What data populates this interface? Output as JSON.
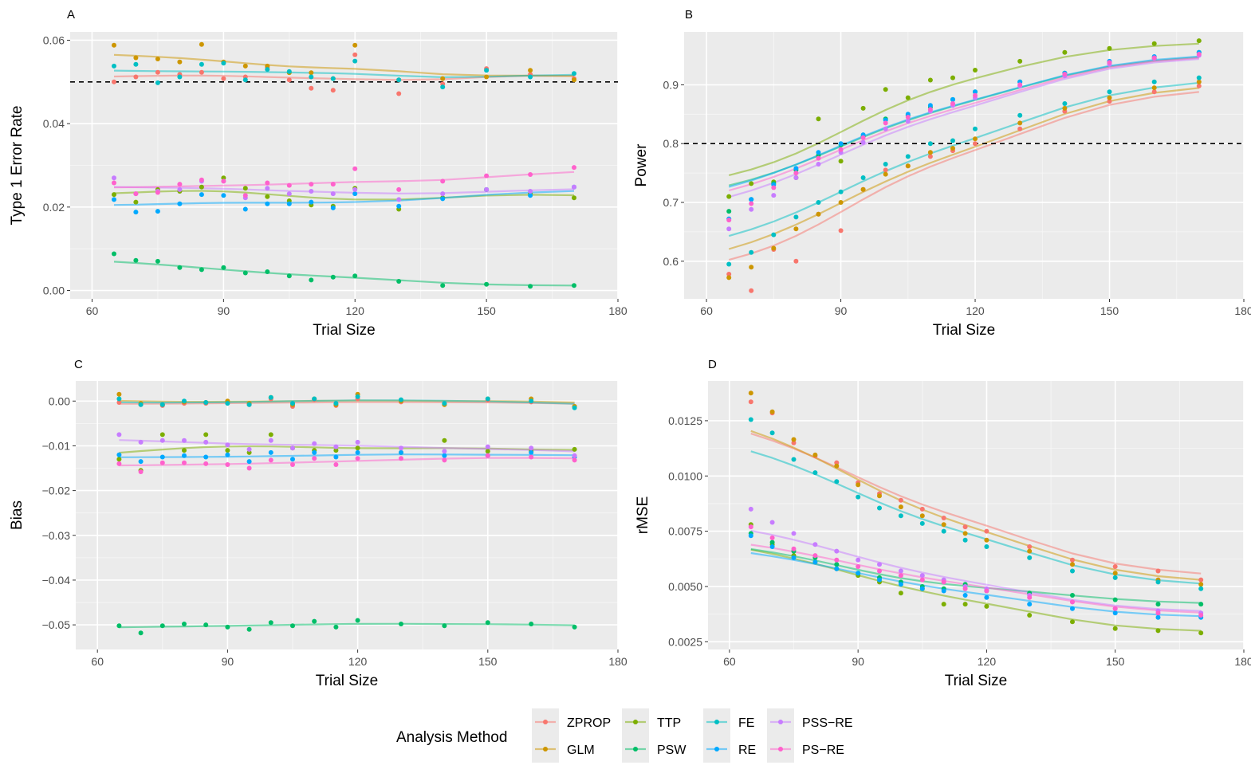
{
  "figure": {
    "legend_title": "Analysis Method",
    "methods": [
      "ZPROP",
      "GLM",
      "TTP",
      "PSW",
      "FE",
      "RE",
      "PSS−RE",
      "PS−RE"
    ],
    "colors": {
      "ZPROP": "#F8766D",
      "GLM": "#CD9600",
      "TTP": "#7CAE00",
      "PSW": "#00BE67",
      "FE": "#00BFC4",
      "RE": "#00A9FF",
      "PSS−RE": "#C77CFF",
      "PS−RE": "#FF61CC"
    }
  },
  "chart_data": [
    {
      "panel": "A",
      "type": "scatter",
      "smoothed_lines": true,
      "xlabel": "Trial Size",
      "ylabel": "Type 1 Error Rate",
      "xlim": [
        55,
        180
      ],
      "ylim": [
        -0.002,
        0.062
      ],
      "xticks": [
        60,
        90,
        120,
        150,
        180
      ],
      "yticks": [
        0.0,
        0.02,
        0.04,
        0.06
      ],
      "ytick_labels": [
        "0.00",
        "0.02",
        "0.04",
        "0.06"
      ],
      "reference_line": 0.05,
      "x": [
        65,
        70,
        75,
        80,
        85,
        90,
        95,
        100,
        105,
        110,
        115,
        120,
        130,
        140,
        150,
        160,
        170
      ],
      "series": [
        {
          "name": "ZPROP",
          "values": [
            0.05,
            0.0512,
            0.0523,
            0.0518,
            0.0523,
            0.0508,
            0.0512,
            0.0535,
            0.0505,
            0.0485,
            0.048,
            0.0565,
            0.0472,
            0.0495,
            0.0532,
            0.0518,
            0.0508
          ]
        },
        {
          "name": "GLM",
          "values": [
            0.0588,
            0.0558,
            0.0555,
            0.0548,
            0.059,
            0.0548,
            0.0538,
            0.0538,
            0.0522,
            0.0522,
            0.0508,
            0.0588,
            0.0505,
            0.0508,
            0.0512,
            0.0528,
            0.0505
          ]
        },
        {
          "name": "TTP",
          "values": [
            0.023,
            0.0212,
            0.0242,
            0.0238,
            0.0248,
            0.027,
            0.0245,
            0.0225,
            0.0215,
            0.0205,
            0.0202,
            0.0245,
            0.0195,
            0.0222,
            0.0242,
            0.0232,
            0.0222
          ]
        },
        {
          "name": "PSW",
          "values": [
            0.0088,
            0.0072,
            0.007,
            0.0055,
            0.005,
            0.0055,
            0.0042,
            0.0045,
            0.0035,
            0.0025,
            0.0032,
            0.0035,
            0.0022,
            0.0012,
            0.0015,
            0.001,
            0.0012
          ]
        },
        {
          "name": "FE",
          "values": [
            0.0538,
            0.0542,
            0.0498,
            0.0512,
            0.0542,
            0.0545,
            0.0505,
            0.053,
            0.0525,
            0.0512,
            0.0508,
            0.055,
            0.0505,
            0.0488,
            0.0528,
            0.0512,
            0.052
          ]
        },
        {
          "name": "RE",
          "values": [
            0.0218,
            0.0188,
            0.019,
            0.0208,
            0.023,
            0.0228,
            0.0195,
            0.0208,
            0.0208,
            0.0212,
            0.0198,
            0.0232,
            0.0202,
            0.022,
            0.0242,
            0.0228,
            0.0248
          ]
        },
        {
          "name": "PSS−RE",
          "values": [
            0.027,
            0.0232,
            0.0238,
            0.0242,
            0.0262,
            0.0262,
            0.0222,
            0.0245,
            0.0232,
            0.0238,
            0.0232,
            0.0242,
            0.0218,
            0.0232,
            0.0242,
            0.0238,
            0.0248
          ]
        },
        {
          "name": "PS−RE",
          "values": [
            0.0258,
            0.0232,
            0.0235,
            0.0255,
            0.0265,
            0.0262,
            0.0228,
            0.0258,
            0.0252,
            0.0255,
            0.0255,
            0.0292,
            0.0242,
            0.0262,
            0.0275,
            0.0278,
            0.0295
          ]
        }
      ]
    },
    {
      "panel": "B",
      "type": "scatter",
      "smoothed_lines": true,
      "xlabel": "Trial Size",
      "ylabel": "Power",
      "xlim": [
        55,
        180
      ],
      "ylim": [
        0.536,
        0.99
      ],
      "xticks": [
        60,
        90,
        120,
        150,
        180
      ],
      "yticks": [
        0.6,
        0.7,
        0.8,
        0.9
      ],
      "ytick_labels": [
        "0.6",
        "0.7",
        "0.8",
        "0.9"
      ],
      "reference_line": 0.8,
      "x": [
        65,
        70,
        75,
        80,
        85,
        90,
        95,
        100,
        105,
        110,
        115,
        120,
        130,
        140,
        150,
        160,
        170
      ],
      "series": [
        {
          "name": "ZPROP",
          "values": [
            0.578,
            0.55,
            0.62,
            0.6,
            0.68,
            0.652,
            0.722,
            0.755,
            0.762,
            0.778,
            0.788,
            0.8,
            0.825,
            0.855,
            0.872,
            0.888,
            0.898
          ]
        },
        {
          "name": "GLM",
          "values": [
            0.572,
            0.59,
            0.622,
            0.655,
            0.68,
            0.7,
            0.722,
            0.748,
            0.762,
            0.785,
            0.792,
            0.808,
            0.835,
            0.86,
            0.878,
            0.895,
            0.905
          ]
        },
        {
          "name": "TTP",
          "values": [
            0.71,
            0.732,
            0.735,
            0.742,
            0.842,
            0.77,
            0.86,
            0.892,
            0.878,
            0.908,
            0.912,
            0.925,
            0.94,
            0.955,
            0.962,
            0.97,
            0.975
          ]
        },
        {
          "name": "PSW",
          "values": [
            0.685,
            0.705,
            0.732,
            0.755,
            0.78,
            0.798,
            0.812,
            0.842,
            0.848,
            0.862,
            0.875,
            0.888,
            0.905,
            0.92,
            0.938,
            0.945,
            0.955
          ]
        },
        {
          "name": "FE",
          "values": [
            0.595,
            0.615,
            0.645,
            0.675,
            0.7,
            0.718,
            0.742,
            0.765,
            0.778,
            0.8,
            0.805,
            0.825,
            0.848,
            0.868,
            0.888,
            0.905,
            0.912
          ]
        },
        {
          "name": "RE",
          "values": [
            0.672,
            0.705,
            0.73,
            0.758,
            0.785,
            0.8,
            0.815,
            0.84,
            0.85,
            0.865,
            0.875,
            0.888,
            0.905,
            0.92,
            0.94,
            0.948,
            0.955
          ]
        },
        {
          "name": "PSS−RE",
          "values": [
            0.655,
            0.688,
            0.712,
            0.742,
            0.765,
            0.785,
            0.802,
            0.825,
            0.838,
            0.855,
            0.865,
            0.878,
            0.898,
            0.915,
            0.935,
            0.945,
            0.95
          ]
        },
        {
          "name": "PS−RE",
          "values": [
            0.67,
            0.698,
            0.725,
            0.75,
            0.775,
            0.79,
            0.81,
            0.835,
            0.845,
            0.858,
            0.868,
            0.882,
            0.9,
            0.918,
            0.938,
            0.946,
            0.952
          ]
        }
      ]
    },
    {
      "panel": "C",
      "type": "scatter",
      "smoothed_lines": true,
      "xlabel": "Trial Size",
      "ylabel": "Bias",
      "xlim": [
        55,
        180
      ],
      "ylim": [
        -0.0555,
        0.0045
      ],
      "xticks": [
        60,
        90,
        120,
        150,
        180
      ],
      "yticks": [
        0.0,
        -0.01,
        -0.02,
        -0.03,
        -0.04,
        -0.05
      ],
      "ytick_labels": [
        "0.00",
        "−0.01",
        "−0.02",
        "−0.03",
        "−0.04",
        "−0.05"
      ],
      "reference_line": null,
      "x": [
        65,
        70,
        75,
        80,
        85,
        90,
        95,
        100,
        105,
        110,
        115,
        120,
        130,
        140,
        150,
        160,
        170
      ],
      "series": [
        {
          "name": "ZPROP",
          "values": [
            -0.0003,
            -0.0008,
            -0.001,
            -0.0005,
            -0.0005,
            -0.0003,
            -0.0008,
            0.0005,
            -0.0012,
            0.0003,
            -0.001,
            0.0005,
            -0.0002,
            -0.0008,
            0.0002,
            -0.0002,
            -0.0012
          ]
        },
        {
          "name": "GLM",
          "values": [
            0.0015,
            -0.0005,
            -0.0008,
            -0.0002,
            -0.0003,
            0.0,
            -0.0005,
            0.0008,
            -0.0008,
            0.0005,
            -0.0008,
            0.0015,
            0.0,
            -0.0008,
            0.0005,
            0.0005,
            -0.0012
          ]
        },
        {
          "name": "TTP",
          "values": [
            -0.013,
            -0.0155,
            -0.0075,
            -0.011,
            -0.0075,
            -0.011,
            -0.0115,
            -0.0075,
            -0.0105,
            -0.011,
            -0.011,
            -0.0105,
            -0.0115,
            -0.0088,
            -0.0112,
            -0.0112,
            -0.0108
          ]
        },
        {
          "name": "PSW",
          "values": [
            -0.0502,
            -0.0518,
            -0.0502,
            -0.0498,
            -0.05,
            -0.0505,
            -0.051,
            -0.0495,
            -0.0502,
            -0.0492,
            -0.0505,
            -0.049,
            -0.0498,
            -0.0502,
            -0.0495,
            -0.0498,
            -0.0505
          ]
        },
        {
          "name": "FE",
          "values": [
            0.0005,
            -0.0008,
            -0.0008,
            0.0,
            -0.0003,
            -0.0005,
            -0.0008,
            0.0008,
            -0.0005,
            0.0005,
            -0.0005,
            0.001,
            0.0003,
            -0.0005,
            0.0005,
            0.0,
            -0.0015
          ]
        },
        {
          "name": "RE",
          "values": [
            -0.012,
            -0.0135,
            -0.0125,
            -0.0122,
            -0.0125,
            -0.012,
            -0.0135,
            -0.0115,
            -0.013,
            -0.0115,
            -0.0125,
            -0.0115,
            -0.0115,
            -0.0122,
            -0.0122,
            -0.0115,
            -0.0125
          ]
        },
        {
          "name": "PSS−RE",
          "values": [
            -0.0075,
            -0.0092,
            -0.0088,
            -0.0088,
            -0.0092,
            -0.0098,
            -0.0108,
            -0.0088,
            -0.0105,
            -0.0095,
            -0.0102,
            -0.0092,
            -0.0105,
            -0.0112,
            -0.0102,
            -0.0105,
            -0.0122
          ]
        },
        {
          "name": "PS−RE",
          "values": [
            -0.014,
            -0.0158,
            -0.0138,
            -0.0138,
            -0.014,
            -0.0142,
            -0.015,
            -0.0132,
            -0.0142,
            -0.0128,
            -0.0142,
            -0.0128,
            -0.0128,
            -0.0132,
            -0.0122,
            -0.0125,
            -0.0132
          ]
        }
      ]
    },
    {
      "panel": "D",
      "type": "scatter",
      "smoothed_lines": true,
      "xlabel": "Trial Size",
      "ylabel": "rMSE",
      "xlim": [
        55,
        180
      ],
      "ylim": [
        0.00215,
        0.0143
      ],
      "xticks": [
        60,
        90,
        120,
        150,
        180
      ],
      "yticks": [
        0.0025,
        0.005,
        0.0075,
        0.01,
        0.0125
      ],
      "ytick_labels": [
        "0.0025",
        "0.0050",
        "0.0075",
        "0.0100",
        "0.0125"
      ],
      "reference_line": null,
      "x": [
        65,
        70,
        75,
        80,
        85,
        90,
        95,
        100,
        105,
        110,
        115,
        120,
        130,
        140,
        150,
        160,
        170
      ],
      "series": [
        {
          "name": "ZPROP",
          "values": [
            0.01335,
            0.01285,
            0.0115,
            0.0109,
            0.0106,
            0.0097,
            0.0092,
            0.0089,
            0.0085,
            0.0081,
            0.0077,
            0.0075,
            0.0068,
            0.0062,
            0.0059,
            0.0057,
            0.0053
          ]
        },
        {
          "name": "GLM",
          "values": [
            0.01375,
            0.0129,
            0.01165,
            0.01095,
            0.01045,
            0.0096,
            0.0091,
            0.0086,
            0.0082,
            0.0078,
            0.0074,
            0.0071,
            0.0066,
            0.006,
            0.0056,
            0.0053,
            0.0051
          ]
        },
        {
          "name": "TTP",
          "values": [
            0.0078,
            0.0069,
            0.0064,
            0.0061,
            0.0058,
            0.0055,
            0.0052,
            0.0047,
            0.0049,
            0.0042,
            0.0042,
            0.0041,
            0.0037,
            0.0034,
            0.0031,
            0.003,
            0.0029
          ]
        },
        {
          "name": "PSW",
          "values": [
            0.0074,
            0.007,
            0.0066,
            0.0063,
            0.006,
            0.0056,
            0.0054,
            0.0052,
            0.005,
            0.0049,
            0.0051,
            0.0048,
            0.0047,
            0.0046,
            0.0044,
            0.0042,
            0.0042
          ]
        },
        {
          "name": "FE",
          "values": [
            0.01255,
            0.01195,
            0.01075,
            0.01015,
            0.00975,
            0.00905,
            0.00855,
            0.0082,
            0.00785,
            0.0075,
            0.0071,
            0.0068,
            0.0063,
            0.0057,
            0.0054,
            0.0052,
            0.0049
          ]
        },
        {
          "name": "RE",
          "values": [
            0.0073,
            0.0068,
            0.0063,
            0.0061,
            0.0058,
            0.0056,
            0.0053,
            0.0051,
            0.0049,
            0.0048,
            0.0046,
            0.0045,
            0.0042,
            0.004,
            0.0038,
            0.0036,
            0.0036
          ]
        },
        {
          "name": "PSS−RE",
          "values": [
            0.0085,
            0.0079,
            0.0074,
            0.0069,
            0.0066,
            0.0062,
            0.006,
            0.0057,
            0.0055,
            0.0053,
            0.005,
            0.0049,
            0.0046,
            0.0043,
            0.004,
            0.0039,
            0.0038
          ]
        },
        {
          "name": "PS−RE",
          "values": [
            0.0077,
            0.0072,
            0.0067,
            0.0064,
            0.0062,
            0.0059,
            0.0057,
            0.0055,
            0.0053,
            0.0052,
            0.0049,
            0.0048,
            0.0045,
            0.0043,
            0.004,
            0.0038,
            0.0037
          ]
        }
      ]
    }
  ]
}
